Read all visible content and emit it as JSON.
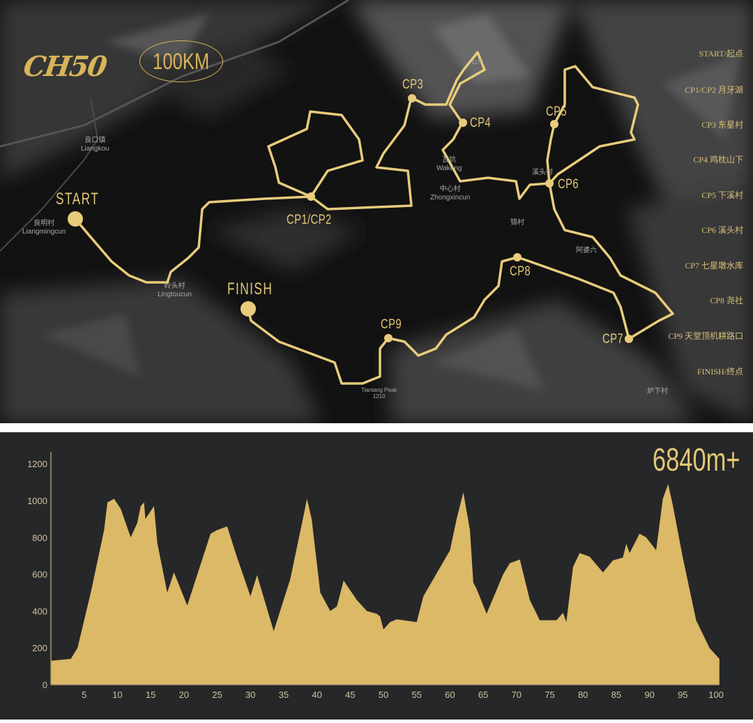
{
  "header": {
    "logo_text": "CH50",
    "distance": "100KM"
  },
  "colors": {
    "route": "#e8cc7c",
    "accent": "#dcb967",
    "map_bg": "#121212",
    "profile_bg": "#262728",
    "profile_fill": "#dcb967"
  },
  "map": {
    "markers": {
      "start": "START",
      "finish": "FINISH",
      "cp1_cp2": "CP1/CP2",
      "cp3": "CP3",
      "cp4": "CP4",
      "cp5": "CP5",
      "cp6": "CP6",
      "cp7": "CP7",
      "cp8": "CP8",
      "cp9": "CP9"
    },
    "places": [
      {
        "cn": "良口镇",
        "en": "Liangkou"
      },
      {
        "cn": "良明村",
        "en": "Liangmingcun"
      },
      {
        "cn": "岭头村",
        "en": "Lingtoucun"
      },
      {
        "cn": "瓦坑",
        "en": "Wakeng"
      },
      {
        "cn": "中心村",
        "en": "Zhongxincun"
      },
      {
        "cn": "溪头村",
        "en": ""
      },
      {
        "cn": "锦村",
        "en": ""
      },
      {
        "cn": "阿婆六",
        "en": ""
      },
      {
        "cn": "炉下村",
        "en": ""
      },
      {
        "cn": "Tiantang Peak",
        "en": "1210"
      },
      {
        "cn": "",
        "en": "1175"
      }
    ],
    "legend": [
      "START/起点",
      "CP1/CP2 月牙湖",
      "CP3 东星村",
      "CP4 鸡枕山下",
      "CP5 下溪村",
      "CP6 溪头村",
      "CP7 七星墩水库",
      "CP8 尧社",
      "CP9 天堂顶机耕路口",
      "FINISH/终点"
    ]
  },
  "profile": {
    "total_gain": "6840m+"
  },
  "chart_data": {
    "type": "area",
    "xlabel": "",
    "ylabel": "",
    "xlim": [
      0,
      101.5
    ],
    "ylim": [
      0,
      1200
    ],
    "xticks": [
      5,
      10,
      15,
      20,
      25,
      30,
      35,
      40,
      45,
      50,
      55,
      60,
      65,
      70,
      75,
      80,
      85,
      90,
      95,
      100
    ],
    "yticks": [
      0,
      200,
      400,
      600,
      800,
      1000,
      1200
    ],
    "grid": false,
    "x": [
      0,
      3,
      4,
      6,
      8,
      8.5,
      9.5,
      10.5,
      12,
      13,
      13.5,
      14,
      14.2,
      15.5,
      16,
      17.5,
      18.5,
      20.5,
      24,
      25,
      26.5,
      28,
      30,
      31,
      33.5,
      36,
      38,
      38.5,
      39.2,
      40.5,
      42,
      43,
      44,
      46,
      47.5,
      49,
      49.5,
      50,
      51,
      52,
      55,
      56,
      58,
      60,
      61,
      62,
      63,
      63.5,
      64,
      65.5,
      68,
      69,
      70.5,
      72,
      73.5,
      76,
      77,
      77.5,
      78.5,
      79.5,
      81,
      83,
      84.5,
      86,
      86.5,
      87,
      88.5,
      89.5,
      91,
      92,
      92.8,
      93.5,
      95,
      97,
      99,
      100.5
    ],
    "y": [
      130,
      140,
      200,
      500,
      840,
      990,
      1010,
      955,
      800,
      880,
      970,
      990,
      900,
      970,
      770,
      500,
      610,
      430,
      820,
      840,
      860,
      690,
      480,
      595,
      290,
      575,
      920,
      1010,
      900,
      500,
      400,
      425,
      565,
      460,
      400,
      385,
      370,
      300,
      340,
      355,
      340,
      480,
      605,
      730,
      900,
      1045,
      840,
      555,
      520,
      385,
      600,
      660,
      680,
      460,
      350,
      350,
      390,
      340,
      640,
      715,
      695,
      610,
      675,
      690,
      765,
      715,
      820,
      800,
      730,
      1010,
      1090,
      975,
      690,
      350,
      200,
      140
    ]
  }
}
